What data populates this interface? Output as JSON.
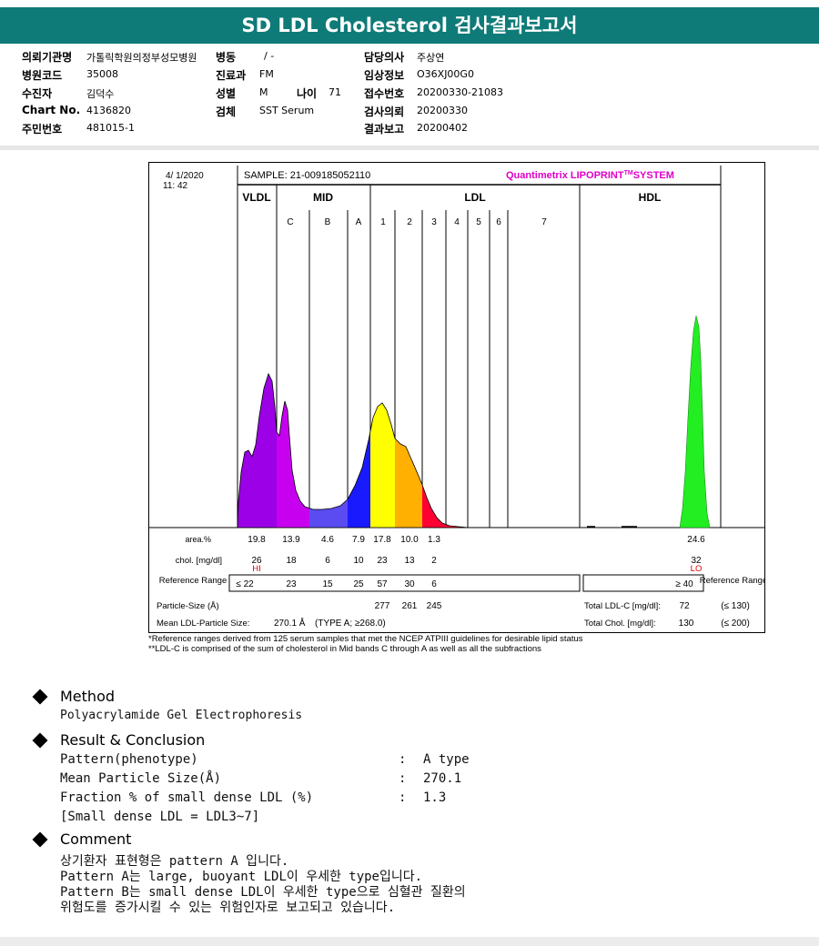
{
  "title": "SD LDL Cholesterol 검사결과보고서",
  "info": {
    "institution_label": "의뢰기관명",
    "institution_value": "가톨릭학원의정부성모병원",
    "ward_label": "병동",
    "ward_value": "/ -",
    "doctor_label": "담당의사",
    "doctor_value": "주상연",
    "hospital_code_label": "병원코드",
    "hospital_code_value": "35008",
    "dept_label": "진료과",
    "dept_value": "FM",
    "clinical_label": "임상정보",
    "clinical_value": "O36XJ00G0",
    "patient_label": "수진자",
    "patient_value": "김덕수",
    "sex_label": "성별",
    "sex_value": "M",
    "age_label": "나이",
    "age_value": "71",
    "accession_label": "접수번호",
    "accession_value": "20200330-21083",
    "chart_label": "Chart No.",
    "chart_value": "4136820",
    "specimen_label": "검체",
    "specimen_value": "SST Serum",
    "request_label": "검사의뢰",
    "request_value": "20200330",
    "ssn_label": "주민번호",
    "ssn_value": "481015-1",
    "report_label": "결과보고",
    "report_value": "20200402"
  },
  "lipoprint": {
    "date": "4/ 1/2020",
    "time": "11: 42",
    "sample": "SAMPLE:  21-009185052110",
    "brand": "Quantimetrix LIPOPRINT",
    "brand_tm": "TM",
    "brand_system": "SYSTEM",
    "groups": [
      "VLDL",
      "MID",
      "LDL",
      "HDL"
    ],
    "bands": [
      "C",
      "B",
      "A",
      "1",
      "2",
      "3",
      "4",
      "5",
      "6",
      "7"
    ],
    "row_labels": {
      "area": "area.%",
      "chol": "chol. [mg/dl]",
      "ref": "Reference Range",
      "ref_right": "Reference Range",
      "particle": "Particle-Size (Å)",
      "mean": "Mean LDL-Particle Size:",
      "mean_value": "270.1 Å",
      "mean_type": "(TYPE A; ≥268.0)",
      "total_ldl": "Total LDL-C [mg/dl]:",
      "total_ldl_value": "72",
      "total_ldl_ref": "(≤ 130)",
      "total_chol": "Total Chol. [mg/dl]:",
      "total_chol_value": "130",
      "total_chol_ref": "(≤ 200)"
    },
    "area": [
      "19.8",
      "13.9",
      "4.6",
      "7.9",
      "17.8",
      "10.0",
      "1.3",
      "24.6"
    ],
    "chol": [
      "26",
      "18",
      "6",
      "10",
      "23",
      "13",
      "2",
      "32"
    ],
    "flags": [
      "HI",
      "LO"
    ],
    "ref": [
      "≤ 22",
      "23",
      "15",
      "25",
      "57",
      "30",
      "6",
      "≥ 40"
    ],
    "particle": [
      "277",
      "261",
      "245"
    ],
    "colors": {
      "vldl": "#9b00e6",
      "midc": "#c800f0",
      "midb": "#5a4cf0",
      "mida": "#1a1aff",
      "ldl1": "#ffff00",
      "ldl2": "#ffb000",
      "ldl3": "#ff0033",
      "hdl": "#22ee22",
      "brand": "#e000c8"
    }
  },
  "footnotes": [
    "*Reference ranges derived from 125 serum samples that met the NCEP ATPIII guidelines for desirable lipid status",
    "**LDL-C is comprised of the sum of cholesterol in Mid bands C through A as well as all the subfractions"
  ],
  "method": {
    "heading": "Method",
    "text": "Polyacrylamide Gel Electrophoresis"
  },
  "result": {
    "heading": "Result & Conclusion",
    "rows": [
      {
        "label": "Pattern(phenotype)",
        "colon": ":",
        "value": "A type"
      },
      {
        "label": "Mean Particle Size(Å)",
        "colon": ":",
        "value": "270.1"
      },
      {
        "label": "Fraction % of small dense LDL (%)",
        "colon": ":",
        "value": "1.3"
      }
    ],
    "note": "[Small dense LDL = LDL3~7]"
  },
  "comment": {
    "heading": "Comment",
    "lines": [
      "상기환자 표현형은 pattern A 입니다.",
      "Pattern A는 large, buoyant LDL이 우세한 type입니다.",
      "Pattern B는 small dense LDL이 우세한 type으로 심혈관 질환의",
      "위험도를 증가시킬 수 있는 위험인자로 보고되고 있습니다."
    ]
  }
}
